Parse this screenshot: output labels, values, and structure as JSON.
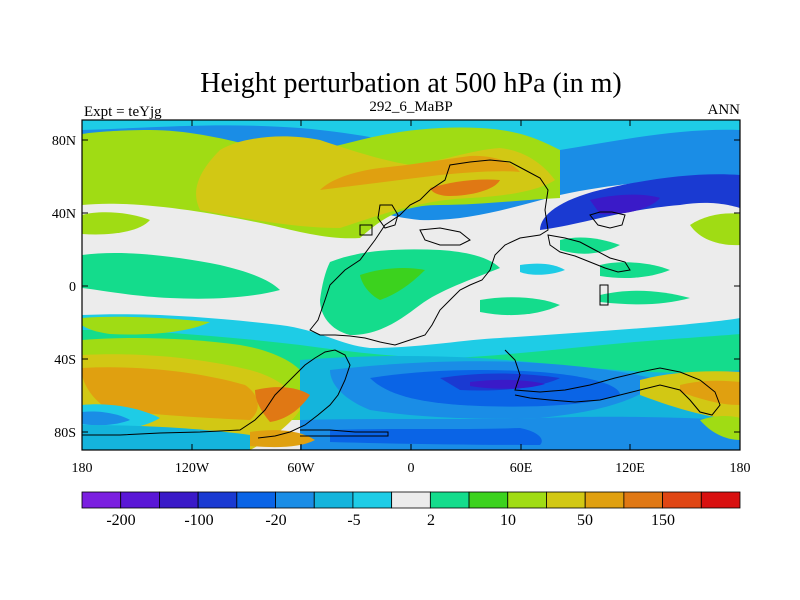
{
  "title": "Height perturbation at 500 hPa (in m)",
  "left_label": "Expt = teYjg",
  "center_label": "292_6_MaBP",
  "right_label": "ANN",
  "chart_data": {
    "type": "heatmap",
    "x_ticks": [
      "180",
      "120W",
      "60W",
      "0",
      "60E",
      "120E",
      "180"
    ],
    "y_ticks": [
      "80N",
      "40N",
      "0",
      "40S",
      "80S"
    ],
    "x_range": [
      -180,
      180
    ],
    "y_range": [
      -90,
      90
    ],
    "colorbar": {
      "colors": [
        "#7b1fe0",
        "#5a17d6",
        "#3a1ac8",
        "#1a3ad2",
        "#0a64e6",
        "#1a8de6",
        "#14b4dc",
        "#1ecce6",
        "#ececec",
        "#14dc8c",
        "#3cd21e",
        "#a0dc14",
        "#d2c814",
        "#e0a010",
        "#e07814",
        "#e04614",
        "#d81010"
      ],
      "labels": [
        "-200",
        "-100",
        "-20",
        "-5",
        "2",
        "10",
        "50",
        "150"
      ]
    },
    "legend_placement": "bottom"
  }
}
